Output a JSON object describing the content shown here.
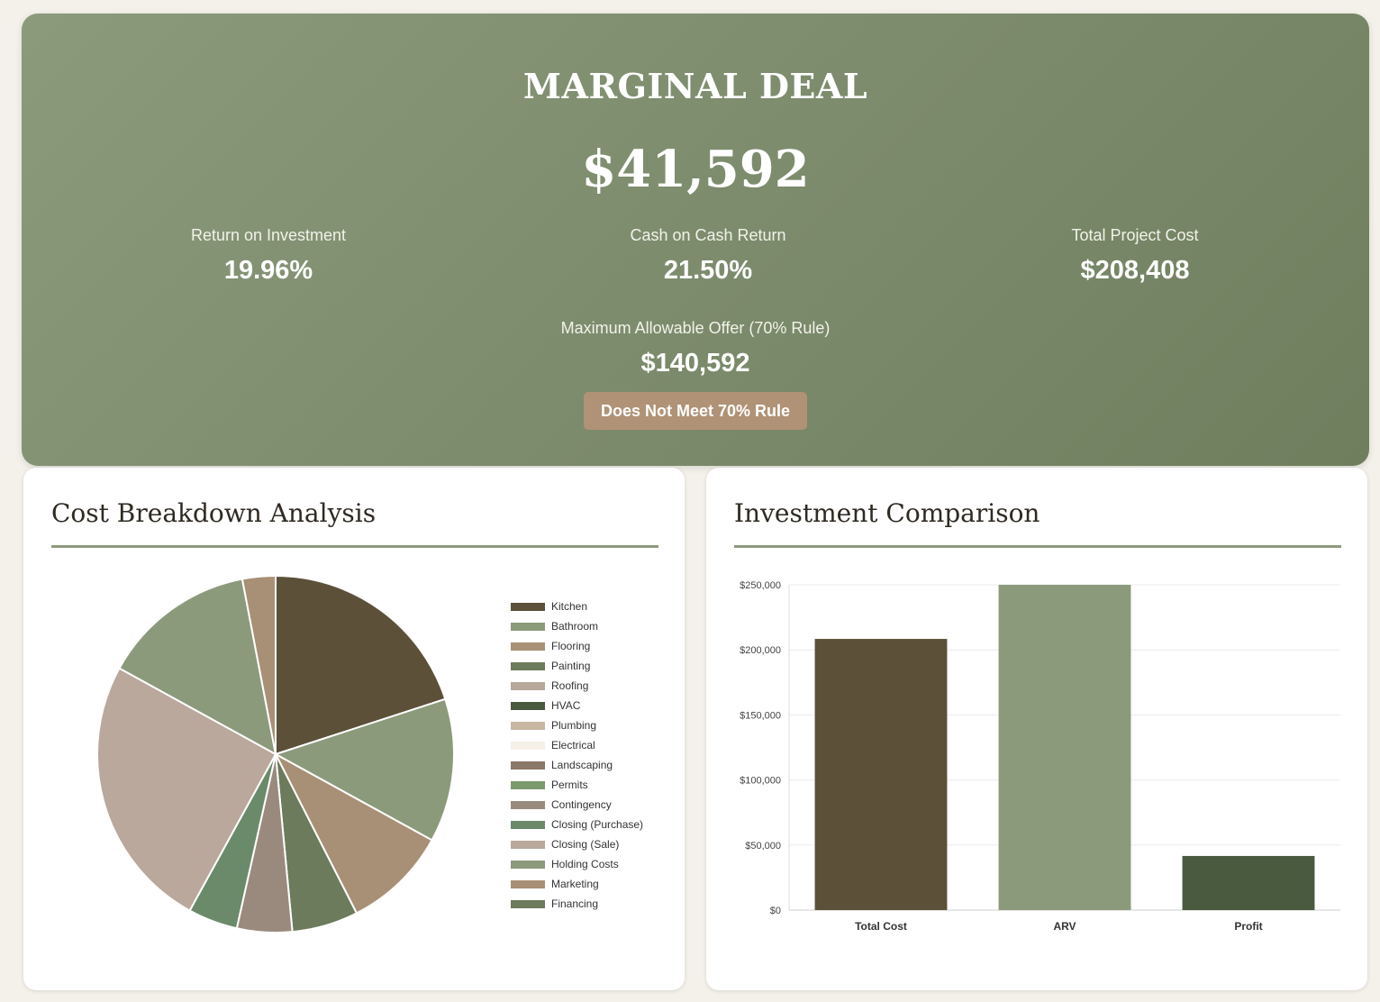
{
  "hero": {
    "title": "MARGINAL DEAL",
    "profit": "$41,592",
    "metrics": [
      {
        "label": "Return on Investment",
        "value": "19.96%"
      },
      {
        "label": "Cash on Cash Return",
        "value": "21.50%"
      },
      {
        "label": "Total Project Cost",
        "value": "$208,408"
      }
    ],
    "mao": {
      "label": "Maximum Allowable Offer (70% Rule)",
      "value": "$140,592"
    },
    "badge": "Does Not Meet 70% Rule"
  },
  "pie_card": {
    "title": "Cost Breakdown Analysis"
  },
  "bar_card": {
    "title": "Investment Comparison"
  },
  "chart_data": [
    {
      "type": "pie",
      "title": "",
      "legend_position": "right",
      "slices": [
        {
          "label": "Kitchen",
          "value": 20.0,
          "color": "#5c5039"
        },
        {
          "label": "Bathroom",
          "value": 13.0,
          "color": "#8c9a7c"
        },
        {
          "label": "Flooring",
          "value": 9.5,
          "color": "#a89076"
        },
        {
          "label": "Painting",
          "value": 6.0,
          "color": "#6b7b5c"
        },
        {
          "label": "Roofing",
          "value": 0,
          "color": "#b8a89a"
        },
        {
          "label": "HVAC",
          "value": 0,
          "color": "#4a5a3f"
        },
        {
          "label": "Plumbing",
          "value": 0,
          "color": "#c8b8a2"
        },
        {
          "label": "Electrical",
          "value": 0,
          "color": "#f5f0e8"
        },
        {
          "label": "Landscaping",
          "value": 0,
          "color": "#8a7868"
        },
        {
          "label": "Permits",
          "value": 0,
          "color": "#7a9a6e"
        },
        {
          "label": "Contingency",
          "value": 5.0,
          "color": "#9a8a7e"
        },
        {
          "label": "Closing (Purchase)",
          "value": 4.5,
          "color": "#6b8a6a"
        },
        {
          "label": "Closing (Sale)",
          "value": 25.0,
          "color": "#b9a89b"
        },
        {
          "label": "Holding Costs",
          "value": 14.0,
          "color": "#8c9a7c"
        },
        {
          "label": "Marketing",
          "value": 3.0,
          "color": "#a89076"
        },
        {
          "label": "Financing",
          "value": 0,
          "color": "#6b7b5c"
        }
      ]
    },
    {
      "type": "bar",
      "title": "",
      "categories": [
        "Total Cost",
        "ARV",
        "Profit"
      ],
      "values": [
        208408,
        250000,
        41592
      ],
      "colors": [
        "#5c5039",
        "#8c9a7c",
        "#4a5a3f"
      ],
      "ylim": [
        0,
        250000
      ],
      "yticks": [
        0,
        50000,
        100000,
        150000,
        200000,
        250000
      ],
      "ytick_labels": [
        "$0",
        "$50,000",
        "$100,000",
        "$150,000",
        "$200,000",
        "$250,000"
      ],
      "grid": true
    }
  ]
}
